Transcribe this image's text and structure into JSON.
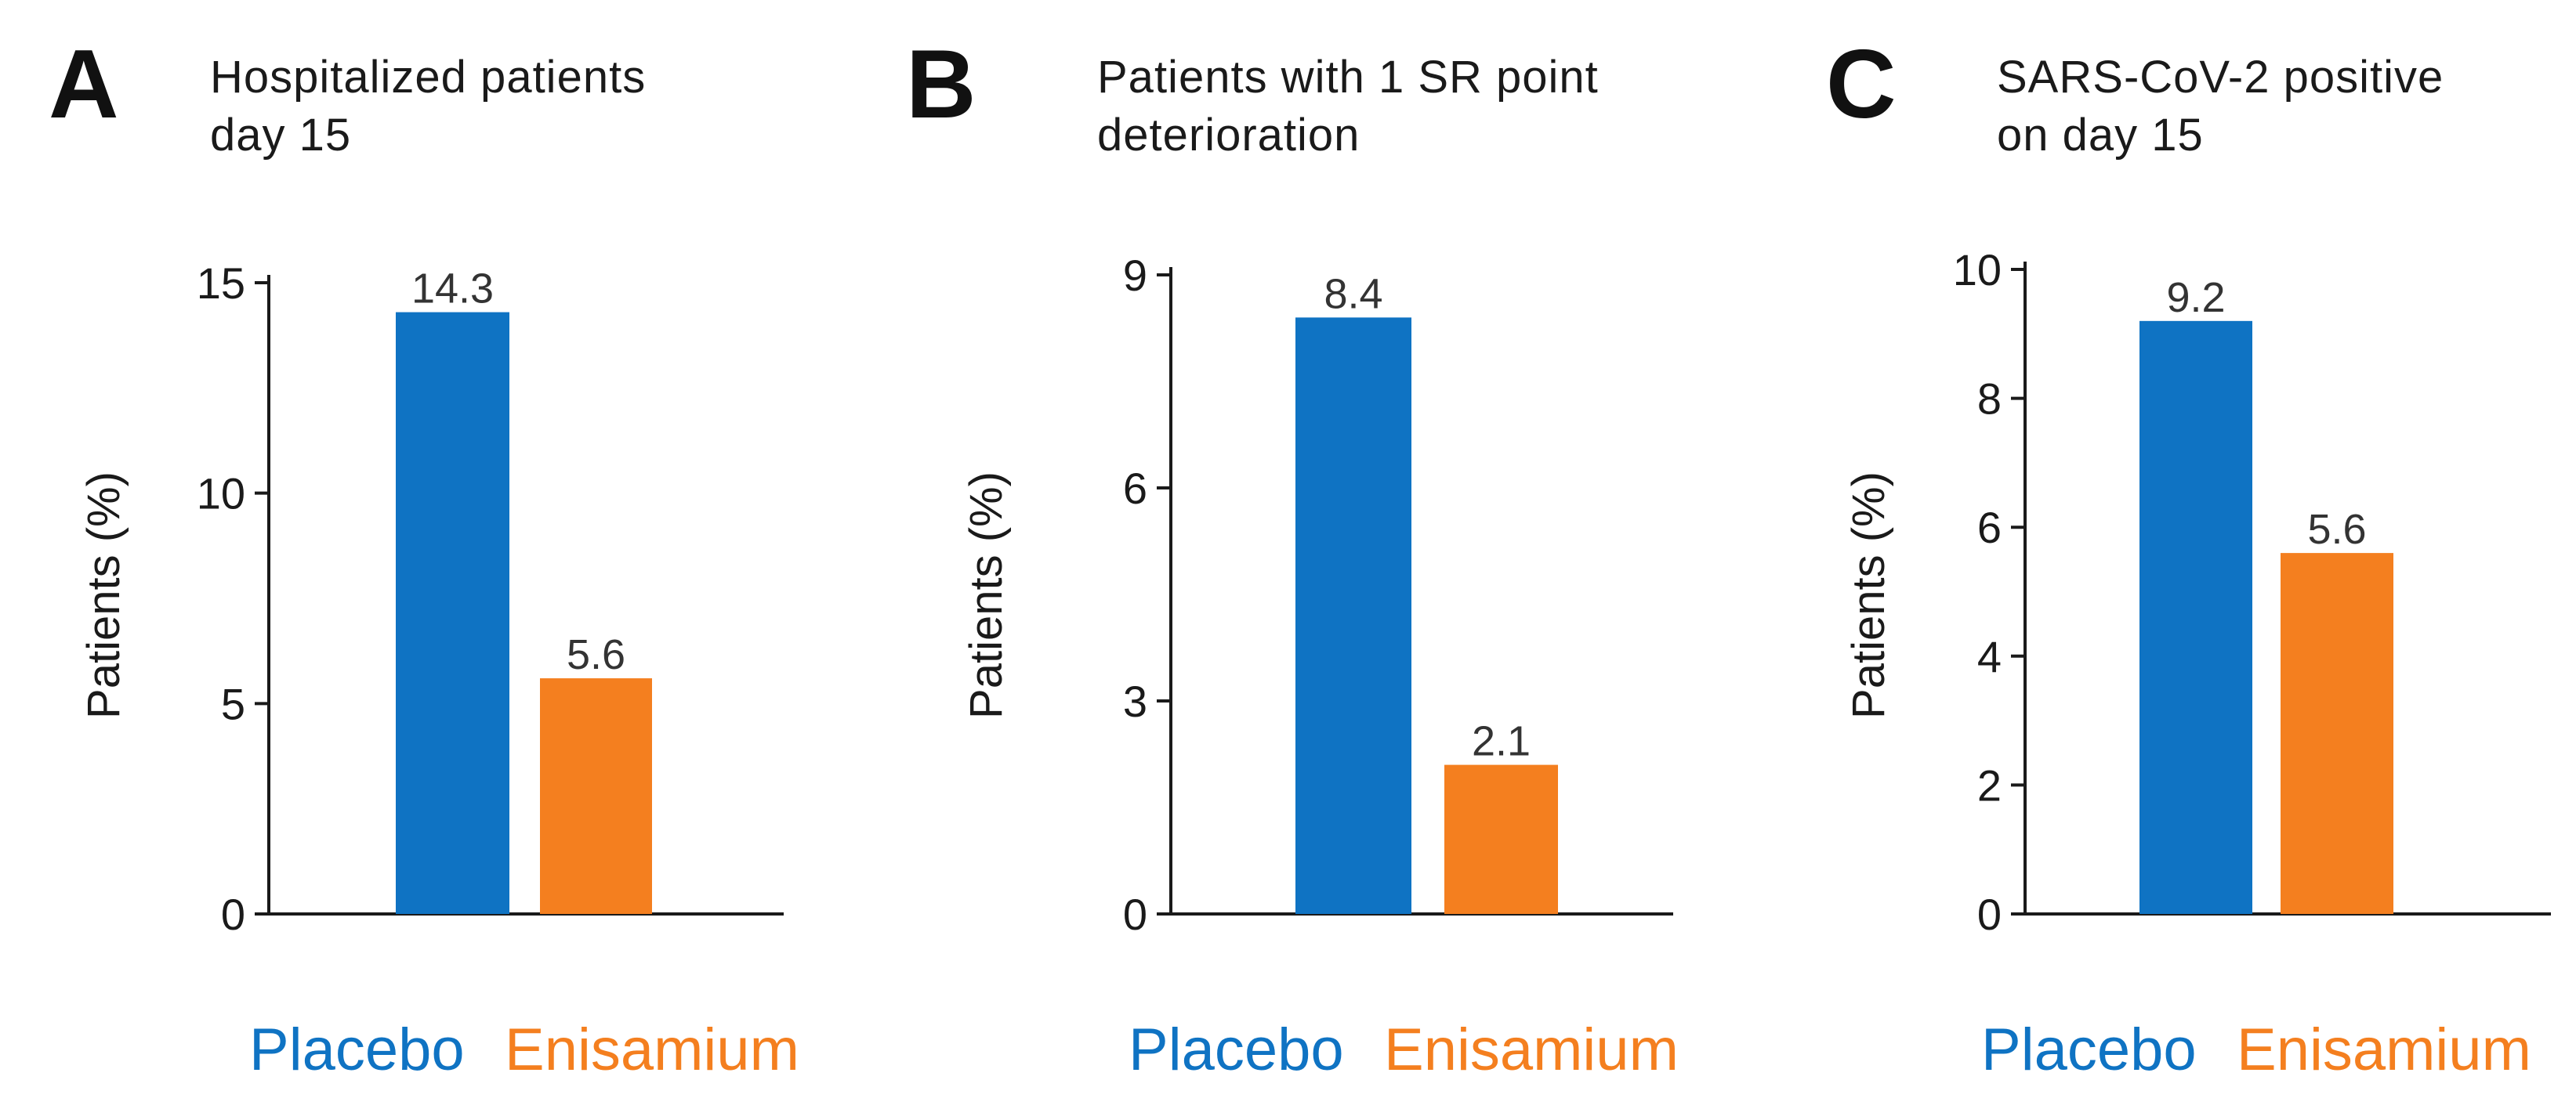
{
  "colors": {
    "placebo": "#0f73c3",
    "enisamium": "#f47f1f",
    "axis": "#1a1a1a"
  },
  "chart_data": [
    {
      "type": "bar",
      "panel": "A",
      "title_lines": [
        "Hospitalized patients",
        "day 15"
      ],
      "ylabel": "Patients (%)",
      "ylim": [
        0,
        15
      ],
      "yticks": [
        0,
        5,
        10,
        15
      ],
      "categories": [
        "Placebo",
        "Enisamium"
      ],
      "values": [
        14.3,
        5.6
      ],
      "data_labels": [
        "14.3",
        "5.6"
      ],
      "grid": false,
      "legend": [
        "Placebo",
        "Enisamium"
      ]
    },
    {
      "type": "bar",
      "panel": "B",
      "title_lines": [
        "Patients with 1 SR point",
        "deterioration"
      ],
      "ylabel": "Patients (%)",
      "ylim": [
        0,
        9
      ],
      "yticks": [
        0,
        3,
        6,
        9
      ],
      "categories": [
        "Placebo",
        "Enisamium"
      ],
      "values": [
        8.4,
        2.1
      ],
      "data_labels": [
        "8.4",
        "2.1"
      ],
      "grid": false,
      "legend": [
        "Placebo",
        "Enisamium"
      ]
    },
    {
      "type": "bar",
      "panel": "C",
      "title_lines": [
        "SARS-CoV-2 positive",
        "on day 15"
      ],
      "ylabel": "Patients (%)",
      "ylim": [
        0,
        10
      ],
      "yticks": [
        0,
        2,
        4,
        6,
        8,
        10
      ],
      "categories": [
        "Placebo",
        "Enisamium"
      ],
      "values": [
        9.2,
        5.6
      ],
      "data_labels": [
        "9.2",
        "5.6"
      ],
      "grid": false,
      "legend": [
        "Placebo",
        "Enisamium"
      ]
    }
  ]
}
